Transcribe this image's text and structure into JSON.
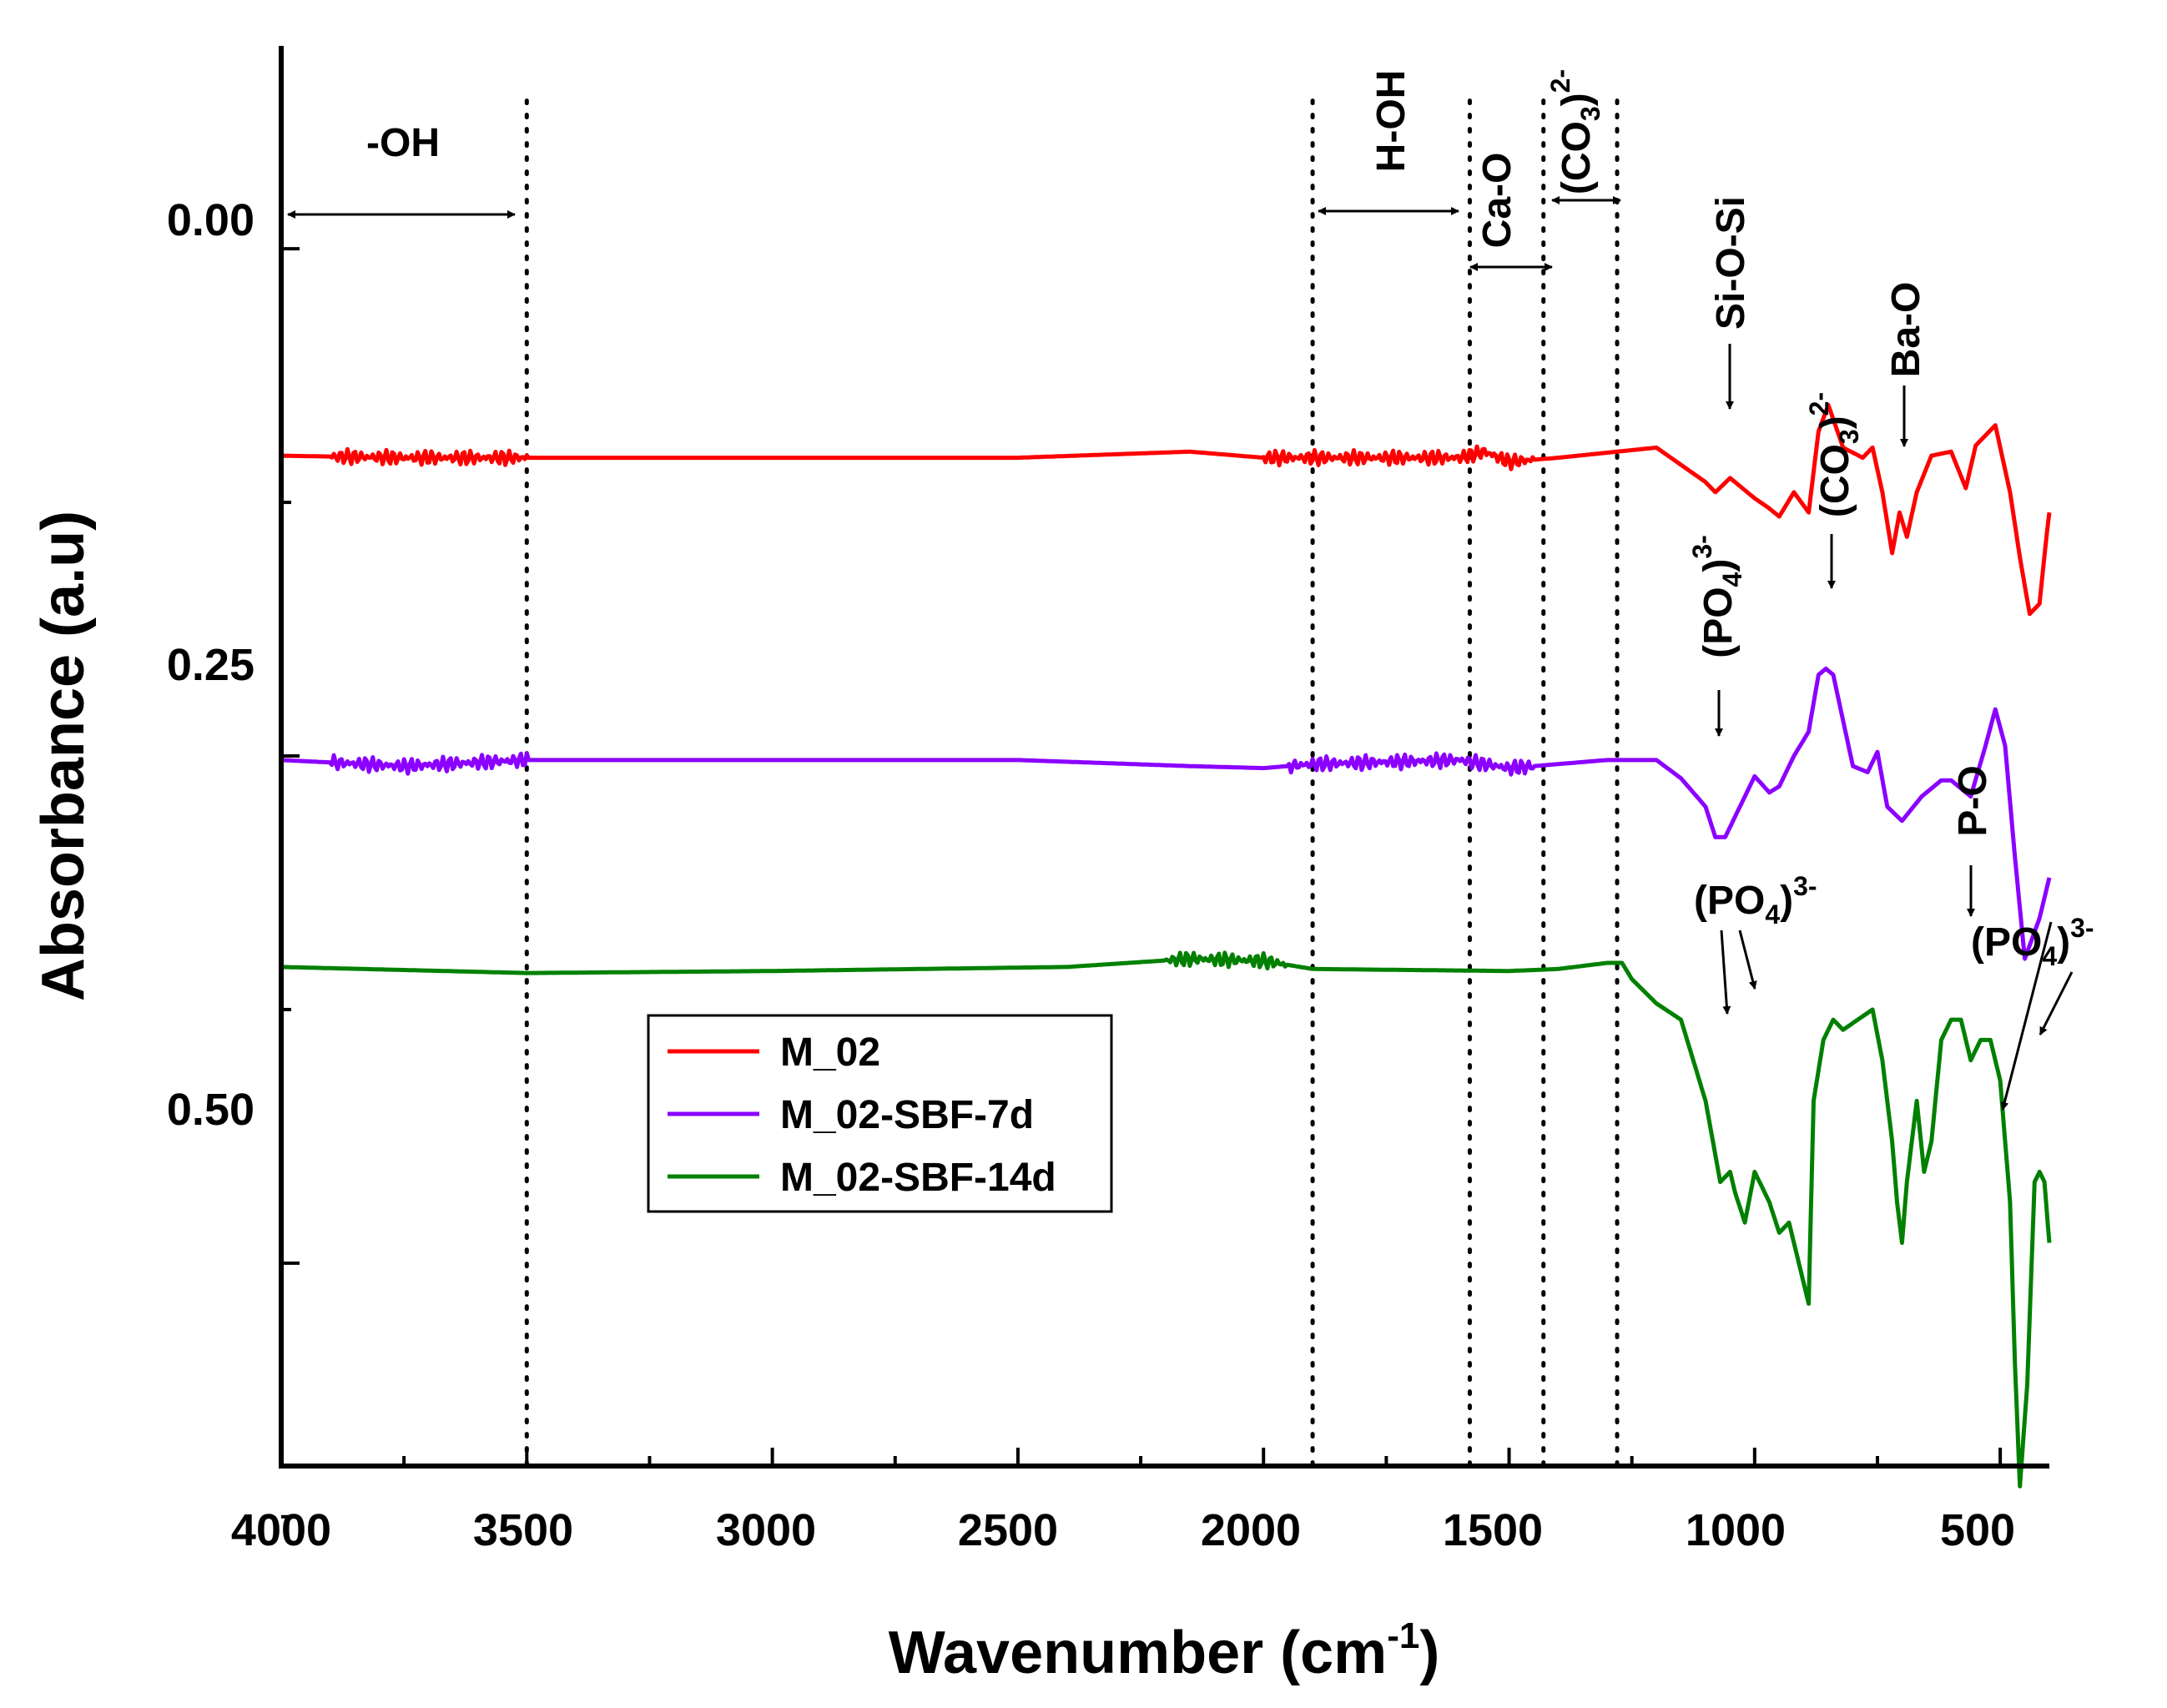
{
  "chart_data": {
    "type": "line",
    "xlabel": "Wavenumber (cm",
    "xlabel_sup": "-1",
    "xlabel_close": ")",
    "ylabel": "Absorbance (a.u)",
    "xlim": [
      4000,
      400
    ],
    "ylim": [
      -0.1,
      0.6
    ],
    "x_ticks": [
      4000,
      3500,
      3000,
      2500,
      2000,
      1500,
      1000,
      500
    ],
    "x_tick_labels": [
      "4000",
      "3500",
      "3000",
      "2500",
      "2000",
      "1500",
      "1000",
      "500"
    ],
    "y_ticks": [
      0.0,
      0.25,
      0.5
    ],
    "y_tick_labels": [
      "0.00",
      "0.25",
      "0.50"
    ],
    "series": [
      {
        "name": "M_02",
        "color": "#ff0000",
        "noise_ranges": [
          [
            3900,
            3500
          ],
          [
            2000,
            1450
          ]
        ],
        "points": [
          [
            4000,
            0.102
          ],
          [
            3750,
            0.103
          ],
          [
            3500,
            0.103
          ],
          [
            2500,
            0.103
          ],
          [
            2150,
            0.1
          ],
          [
            2000,
            0.103
          ],
          [
            1600,
            0.103
          ],
          [
            1550,
            0.1
          ],
          [
            1500,
            0.105
          ],
          [
            1400,
            0.103
          ],
          [
            1200,
            0.098
          ],
          [
            1100,
            0.115
          ],
          [
            1080,
            0.12
          ],
          [
            1050,
            0.113
          ],
          [
            1000,
            0.123
          ],
          [
            970,
            0.128
          ],
          [
            950,
            0.132
          ],
          [
            920,
            0.12
          ],
          [
            890,
            0.13
          ],
          [
            870,
            0.09
          ],
          [
            850,
            0.077
          ],
          [
            820,
            0.098
          ],
          [
            780,
            0.103
          ],
          [
            760,
            0.098
          ],
          [
            740,
            0.12
          ],
          [
            720,
            0.15
          ],
          [
            705,
            0.13
          ],
          [
            690,
            0.142
          ],
          [
            670,
            0.12
          ],
          [
            640,
            0.102
          ],
          [
            600,
            0.1
          ],
          [
            570,
            0.118
          ],
          [
            550,
            0.097
          ],
          [
            510,
            0.087
          ],
          [
            480,
            0.12
          ],
          [
            460,
            0.152
          ],
          [
            440,
            0.18
          ],
          [
            420,
            0.175
          ],
          [
            405,
            0.14
          ],
          [
            400,
            0.13
          ]
        ]
      },
      {
        "name": "M_02-SBF-7d",
        "color": "#8b00ff",
        "noise_ranges": [
          [
            3900,
            3500
          ],
          [
            1950,
            1450
          ]
        ],
        "points": [
          [
            4000,
            0.252
          ],
          [
            3750,
            0.255
          ],
          [
            3500,
            0.252
          ],
          [
            2500,
            0.252
          ],
          [
            2150,
            0.255
          ],
          [
            2000,
            0.256
          ],
          [
            1900,
            0.254
          ],
          [
            1600,
            0.252
          ],
          [
            1500,
            0.256
          ],
          [
            1300,
            0.252
          ],
          [
            1200,
            0.252
          ],
          [
            1150,
            0.261
          ],
          [
            1100,
            0.275
          ],
          [
            1080,
            0.29
          ],
          [
            1060,
            0.29
          ],
          [
            1000,
            0.26
          ],
          [
            970,
            0.268
          ],
          [
            950,
            0.265
          ],
          [
            920,
            0.25
          ],
          [
            890,
            0.238
          ],
          [
            870,
            0.21
          ],
          [
            855,
            0.207
          ],
          [
            840,
            0.21
          ],
          [
            800,
            0.255
          ],
          [
            770,
            0.258
          ],
          [
            750,
            0.248
          ],
          [
            730,
            0.275
          ],
          [
            700,
            0.282
          ],
          [
            660,
            0.27
          ],
          [
            620,
            0.262
          ],
          [
            600,
            0.262
          ],
          [
            560,
            0.27
          ],
          [
            530,
            0.245
          ],
          [
            510,
            0.227
          ],
          [
            490,
            0.245
          ],
          [
            470,
            0.3
          ],
          [
            450,
            0.35
          ],
          [
            420,
            0.33
          ],
          [
            400,
            0.31
          ]
        ]
      },
      {
        "name": "M_02-SBF-14d",
        "color": "#008000",
        "noise_ranges": [
          [
            2200,
            1950
          ]
        ],
        "points": [
          [
            4000,
            0.354
          ],
          [
            3500,
            0.357
          ],
          [
            3000,
            0.356
          ],
          [
            2400,
            0.354
          ],
          [
            2150,
            0.35
          ],
          [
            2000,
            0.351
          ],
          [
            1900,
            0.355
          ],
          [
            1500,
            0.356
          ],
          [
            1400,
            0.355
          ],
          [
            1300,
            0.352
          ],
          [
            1270,
            0.352
          ],
          [
            1250,
            0.36
          ],
          [
            1200,
            0.372
          ],
          [
            1150,
            0.38
          ],
          [
            1100,
            0.42
          ],
          [
            1070,
            0.46
          ],
          [
            1050,
            0.455
          ],
          [
            1040,
            0.465
          ],
          [
            1020,
            0.48
          ],
          [
            1000,
            0.455
          ],
          [
            970,
            0.47
          ],
          [
            950,
            0.485
          ],
          [
            930,
            0.48
          ],
          [
            910,
            0.5
          ],
          [
            890,
            0.52
          ],
          [
            880,
            0.42
          ],
          [
            860,
            0.39
          ],
          [
            840,
            0.38
          ],
          [
            820,
            0.385
          ],
          [
            790,
            0.38
          ],
          [
            760,
            0.375
          ],
          [
            740,
            0.4
          ],
          [
            720,
            0.44
          ],
          [
            710,
            0.47
          ],
          [
            700,
            0.49
          ],
          [
            690,
            0.46
          ],
          [
            680,
            0.44
          ],
          [
            670,
            0.42
          ],
          [
            655,
            0.455
          ],
          [
            640,
            0.44
          ],
          [
            620,
            0.39
          ],
          [
            600,
            0.38
          ],
          [
            580,
            0.38
          ],
          [
            560,
            0.4
          ],
          [
            540,
            0.39
          ],
          [
            520,
            0.39
          ],
          [
            500,
            0.41
          ],
          [
            480,
            0.47
          ],
          [
            470,
            0.55
          ],
          [
            460,
            0.61
          ],
          [
            445,
            0.56
          ],
          [
            430,
            0.46
          ],
          [
            420,
            0.455
          ],
          [
            410,
            0.46
          ],
          [
            400,
            0.49
          ]
        ]
      }
    ],
    "dotted_lines_x": [
      3500,
      1900,
      1580,
      1430,
      1280
    ],
    "annotations": {
      "oh": {
        "label": "-OH"
      },
      "hoh": {
        "label": "H-OH"
      },
      "cao": {
        "label": "Ca-O"
      },
      "co3_top": {
        "base": "(CO",
        "sub": "3",
        "close": ")",
        "sup": "2-"
      },
      "siosi": {
        "label": "Si-O-Si"
      },
      "bao": {
        "label": "Ba-O"
      },
      "co3_mid": {
        "base": "(CO",
        "sub": "3",
        "close": ")",
        "sup": "2-"
      },
      "po4_mid": {
        "base": "(PO",
        "sub": "4",
        "close": ")",
        "sup": "3-"
      },
      "po": {
        "label": "P-O"
      },
      "po4_low1": {
        "base": "(PO",
        "sub": "4",
        "close": ")",
        "sup": "3-"
      },
      "po4_low2": {
        "base": "(PO",
        "sub": "4",
        "close": ")",
        "sup": "3-"
      }
    },
    "legend": {
      "position": "lower-left",
      "entries": [
        "M_02",
        "M_02-SBF-7d",
        "M_02-SBF-14d"
      ]
    }
  }
}
